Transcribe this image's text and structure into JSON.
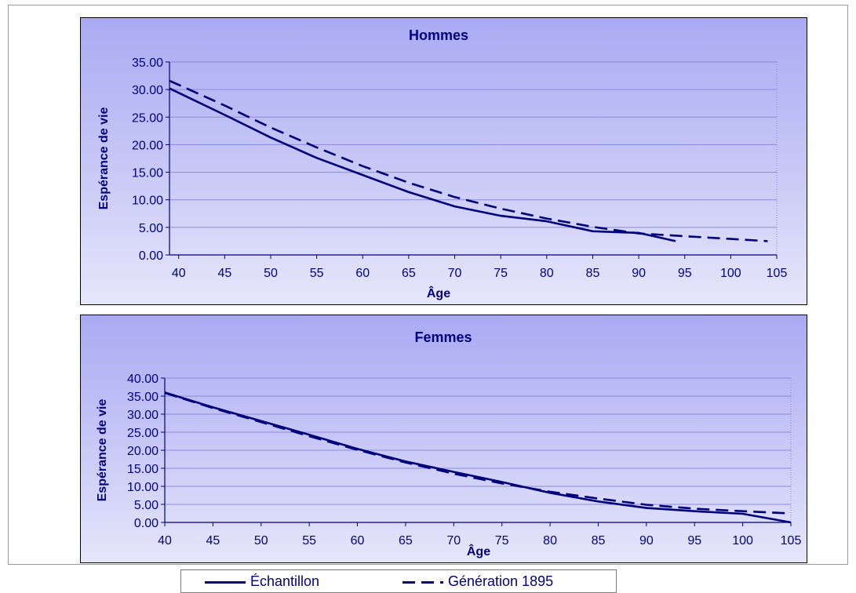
{
  "colors": {
    "series": "#00007a",
    "tick_and_text": "#000080",
    "grid": "#8a8adc",
    "axis": "#000080"
  },
  "legend": {
    "items": [
      {
        "label": "Échantillon",
        "style": "solid"
      },
      {
        "label": "Génération 1895",
        "style": "dashed"
      }
    ],
    "placement": "bottom"
  },
  "chart_data": [
    {
      "type": "line",
      "title": "Hommes",
      "xlabel": "Âge",
      "ylabel": "Espérance de vie",
      "xlim": [
        39,
        105
      ],
      "ylim": [
        0,
        35
      ],
      "xticks": [
        40,
        45,
        50,
        55,
        60,
        65,
        70,
        75,
        80,
        85,
        90,
        95,
        100,
        105
      ],
      "yticks": [
        "0.00",
        "5.00",
        "10.00",
        "15.00",
        "20.00",
        "25.00",
        "30.00",
        "35.00"
      ],
      "grid": "horizontal",
      "series": [
        {
          "name": "Échantillon",
          "style": "solid",
          "x": [
            39,
            45,
            50,
            55,
            60,
            65,
            70,
            75,
            80,
            85,
            90,
            94
          ],
          "y": [
            30.2,
            25.4,
            21.3,
            17.6,
            14.5,
            11.4,
            8.8,
            7.1,
            6.1,
            4.3,
            4.0,
            2.5
          ]
        },
        {
          "name": "Génération 1895",
          "style": "dashed",
          "x": [
            39,
            45,
            50,
            55,
            60,
            65,
            70,
            75,
            80,
            85,
            90,
            95,
            100,
            104
          ],
          "y": [
            31.6,
            27.1,
            23.1,
            19.5,
            16.1,
            13.1,
            10.5,
            8.4,
            6.6,
            5.1,
            3.9,
            3.4,
            2.9,
            2.5
          ]
        }
      ]
    },
    {
      "type": "line",
      "title": "Femmes",
      "xlabel": "Âge",
      "ylabel": "Espérance de vie",
      "xlim": [
        40,
        105
      ],
      "ylim": [
        0,
        40
      ],
      "xticks": [
        40,
        45,
        50,
        55,
        60,
        65,
        70,
        75,
        80,
        85,
        90,
        95,
        100,
        105
      ],
      "yticks": [
        "0.00",
        "5.00",
        "10.00",
        "15.00",
        "20.00",
        "25.00",
        "30.00",
        "35.00",
        "40.00"
      ],
      "grid": "horizontal",
      "series": [
        {
          "name": "Échantillon",
          "style": "solid",
          "x": [
            40,
            45,
            50,
            55,
            60,
            65,
            70,
            75,
            80,
            85,
            90,
            95,
            100,
            105
          ],
          "y": [
            36.0,
            31.9,
            28.1,
            24.3,
            20.4,
            16.9,
            14.0,
            11.2,
            8.2,
            5.8,
            4.0,
            3.1,
            2.4,
            0.0
          ]
        },
        {
          "name": "Génération 1895",
          "style": "dashed",
          "x": [
            40,
            45,
            50,
            55,
            60,
            65,
            70,
            75,
            80,
            85,
            90,
            95,
            100,
            105
          ],
          "y": [
            35.9,
            31.7,
            27.8,
            23.9,
            20.1,
            16.6,
            13.5,
            10.8,
            8.5,
            6.6,
            4.9,
            3.8,
            3.1,
            2.5
          ]
        }
      ]
    }
  ]
}
